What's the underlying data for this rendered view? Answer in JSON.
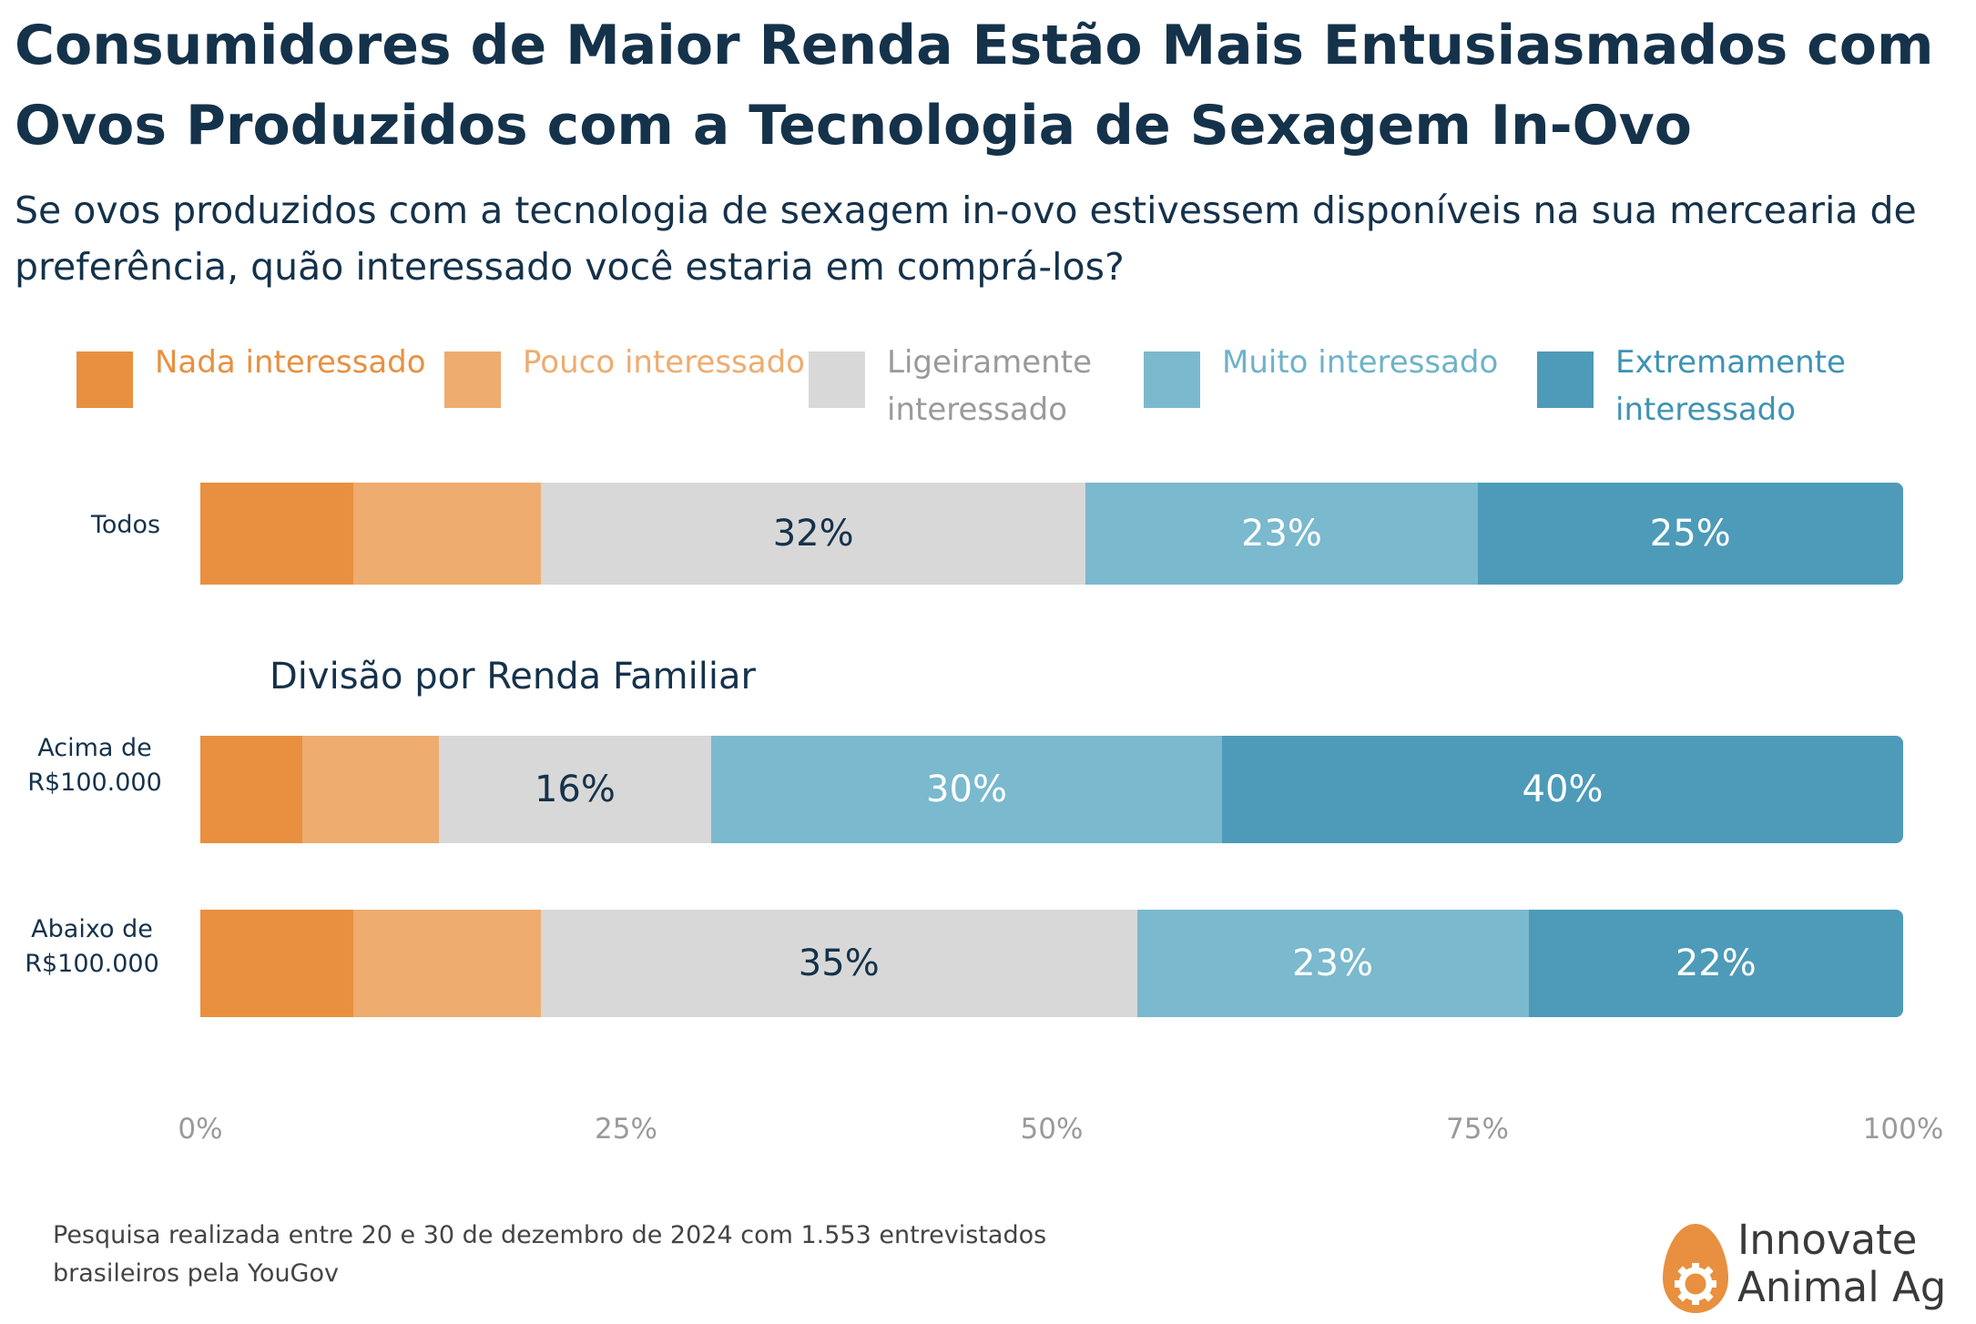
{
  "title": "Consumidores de Maior Renda Estão Mais Entusiasmados com Ovos Produzidos com a Tecnologia de Sexagem In-Ovo",
  "subtitle": "Se ovos produzidos com a tecnologia de sexagem in-ovo estivessem disponíveis na sua mercearia de preferência, quão interessado você estaria em comprá-los?",
  "section_title": "Divisão por Renda Familiar",
  "footnote": "Pesquisa realizada entre 20 e 30 de dezembro de 2024 com 1.553 entrevistados brasileiros pela YouGov",
  "logo": {
    "line1": "Innovate",
    "line2": "Animal Ag"
  },
  "colors": {
    "nada": "#e8903f",
    "pouco": "#eeac6f",
    "ligeiramente": "#d8d8d8",
    "muito": "#7ab9ce",
    "extremamente": "#4d9bb9"
  },
  "chart_data": {
    "type": "bar",
    "orientation": "horizontal",
    "stacked": true,
    "categories": [
      "Todos",
      "Acima de R$100.000",
      "Abaixo de R$100.000"
    ],
    "series": [
      {
        "name": "Nada interessado",
        "values": [
          9,
          6,
          9
        ]
      },
      {
        "name": "Pouco interessado",
        "values": [
          11,
          8,
          11
        ]
      },
      {
        "name": "Ligeiramente interessado",
        "values": [
          32,
          16,
          35
        ]
      },
      {
        "name": "Muito interessado",
        "values": [
          23,
          30,
          23
        ]
      },
      {
        "name": "Extremamente interessado",
        "values": [
          25,
          40,
          22
        ]
      }
    ],
    "data_labels": [
      [
        "",
        "",
        "32%",
        "23%",
        "25%"
      ],
      [
        "",
        "",
        "16%",
        "30%",
        "40%"
      ],
      [
        "",
        "",
        "35%",
        "23%",
        "22%"
      ]
    ],
    "xlim": [
      0,
      100
    ],
    "xticks": [
      "0%",
      "25%",
      "50%",
      "75%",
      "100%"
    ],
    "legend": "top",
    "grid": false
  }
}
